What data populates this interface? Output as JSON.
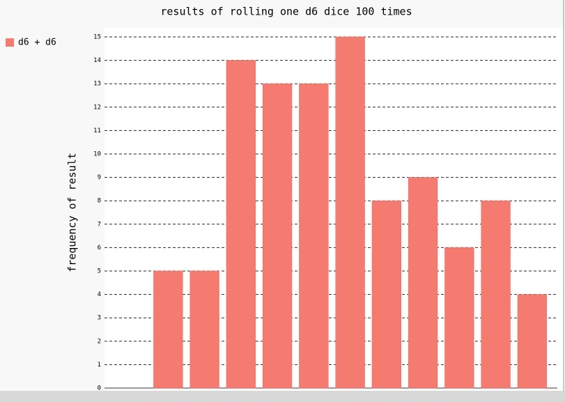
{
  "chart_data": {
    "type": "bar",
    "title": "results of rolling one d6 dice 100 times",
    "y_label": "frequency of result",
    "categories": [
      null,
      null,
      null,
      null,
      null,
      null,
      null,
      null,
      null,
      null,
      null,
      null
    ],
    "series": [
      {
        "name": "d6 + d6",
        "color": "#f57a70",
        "values": [
          0,
          5,
          5,
          14,
          13,
          13,
          15,
          8,
          9,
          6,
          8,
          4
        ]
      }
    ],
    "ylim": [
      0,
      15
    ],
    "yticks": [
      0,
      1,
      2,
      3,
      4,
      5,
      6,
      7,
      8,
      9,
      10,
      11,
      12,
      13,
      14,
      15
    ],
    "grid": true
  }
}
